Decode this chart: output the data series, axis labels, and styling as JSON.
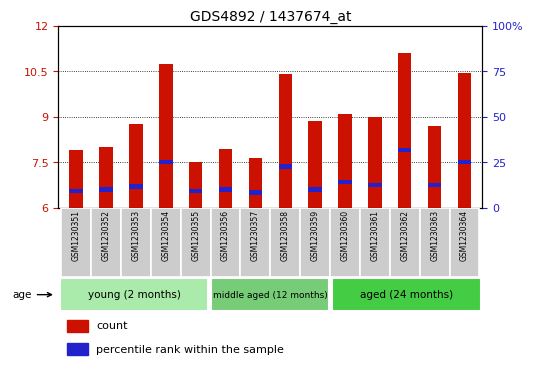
{
  "title": "GDS4892 / 1437674_at",
  "samples": [
    "GSM1230351",
    "GSM1230352",
    "GSM1230353",
    "GSM1230354",
    "GSM1230355",
    "GSM1230356",
    "GSM1230357",
    "GSM1230358",
    "GSM1230359",
    "GSM1230360",
    "GSM1230361",
    "GSM1230362",
    "GSM1230363",
    "GSM1230364"
  ],
  "count_values": [
    7.9,
    8.0,
    8.75,
    10.75,
    7.5,
    7.95,
    7.65,
    10.4,
    8.85,
    9.1,
    9.0,
    11.1,
    8.7,
    10.45
  ],
  "percentile_values": [
    6.55,
    6.6,
    6.7,
    7.5,
    6.55,
    6.6,
    6.5,
    7.35,
    6.6,
    6.85,
    6.75,
    7.9,
    6.75,
    7.5
  ],
  "ymin": 6,
  "ymax": 12,
  "yticks": [
    6,
    7.5,
    9,
    10.5,
    12
  ],
  "ytick_labels_left": [
    "6",
    "7.5",
    "9",
    "10.5",
    "12"
  ],
  "ytick_labels_right": [
    "0",
    "25",
    "50",
    "75",
    "100%"
  ],
  "groups": [
    {
      "label": "young (2 months)",
      "start": 0,
      "end": 5
    },
    {
      "label": "middle aged (12 months)",
      "start": 5,
      "end": 9
    },
    {
      "label": "aged (24 months)",
      "start": 9,
      "end": 14
    }
  ],
  "group_colors": [
    "#aaeaaa",
    "#77cc77",
    "#44cc44"
  ],
  "bar_color": "#CC1100",
  "percentile_color": "#2222CC",
  "bar_width": 0.45,
  "background_color": "#ffffff",
  "tick_label_color_left": "#CC1100",
  "tick_label_color_right": "#2222CC",
  "legend_count_label": "count",
  "legend_percentile_label": "percentile rank within the sample",
  "age_label": "age",
  "xtick_bg_color": "#cccccc",
  "xtick_border_color": "#aaaaaa"
}
